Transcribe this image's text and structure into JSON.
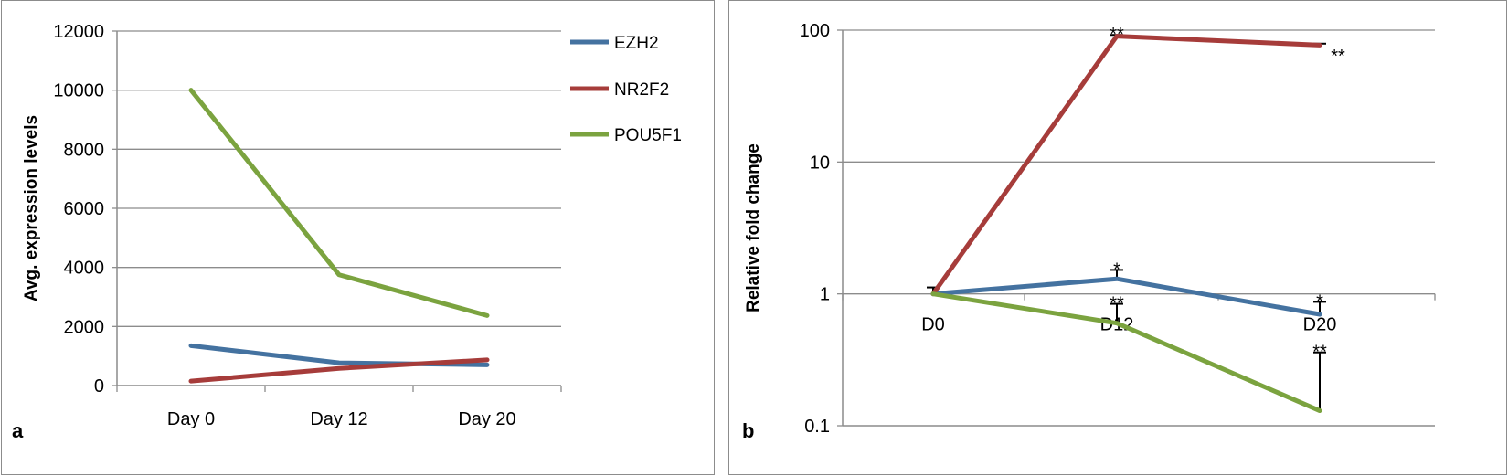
{
  "panels": {
    "a": {
      "letter": "a"
    },
    "b": {
      "letter": "b"
    }
  },
  "colors": {
    "EZH2": "#4472a0",
    "NR2F2": "#a63c3a",
    "POU5F1": "#7ba33f"
  },
  "chart_data": [
    {
      "type": "line",
      "ylabel": "Avg. expression levels",
      "xlabel": "",
      "categories": [
        "Day 0",
        "Day 12",
        "Day 20"
      ],
      "ylim": [
        0,
        12000
      ],
      "yticks": [
        0,
        2000,
        4000,
        6000,
        8000,
        10000,
        12000
      ],
      "grid": true,
      "legend": "right",
      "series": [
        {
          "name": "EZH2",
          "values": [
            1350,
            770,
            700
          ]
        },
        {
          "name": "NR2F2",
          "values": [
            150,
            580,
            870
          ]
        },
        {
          "name": "POU5F1",
          "values": [
            10000,
            3750,
            2370
          ]
        }
      ]
    },
    {
      "type": "line",
      "ylabel": "Relative fold change",
      "xlabel": "",
      "categories": [
        "D0",
        "D12",
        "D20"
      ],
      "yscale": "log",
      "ylim": [
        0.1,
        100
      ],
      "yticks": [
        "0.1",
        "1",
        "10",
        "100"
      ],
      "grid": true,
      "legend": "none",
      "series": [
        {
          "name": "EZH2",
          "values": [
            1.0,
            1.3,
            0.7
          ],
          "error_upper": [
            1.12,
            1.52,
            0.87
          ],
          "significance": [
            "",
            "*",
            "*"
          ]
        },
        {
          "name": "NR2F2",
          "values": [
            1.0,
            90,
            77
          ],
          "error_upper": [
            1.0,
            92,
            79
          ],
          "significance": [
            "",
            "**",
            "**"
          ]
        },
        {
          "name": "POU5F1",
          "values": [
            1.0,
            0.6,
            0.13
          ],
          "error_upper": [
            1.0,
            0.84,
            0.36
          ],
          "significance": [
            "",
            "**",
            "**"
          ]
        }
      ]
    }
  ]
}
